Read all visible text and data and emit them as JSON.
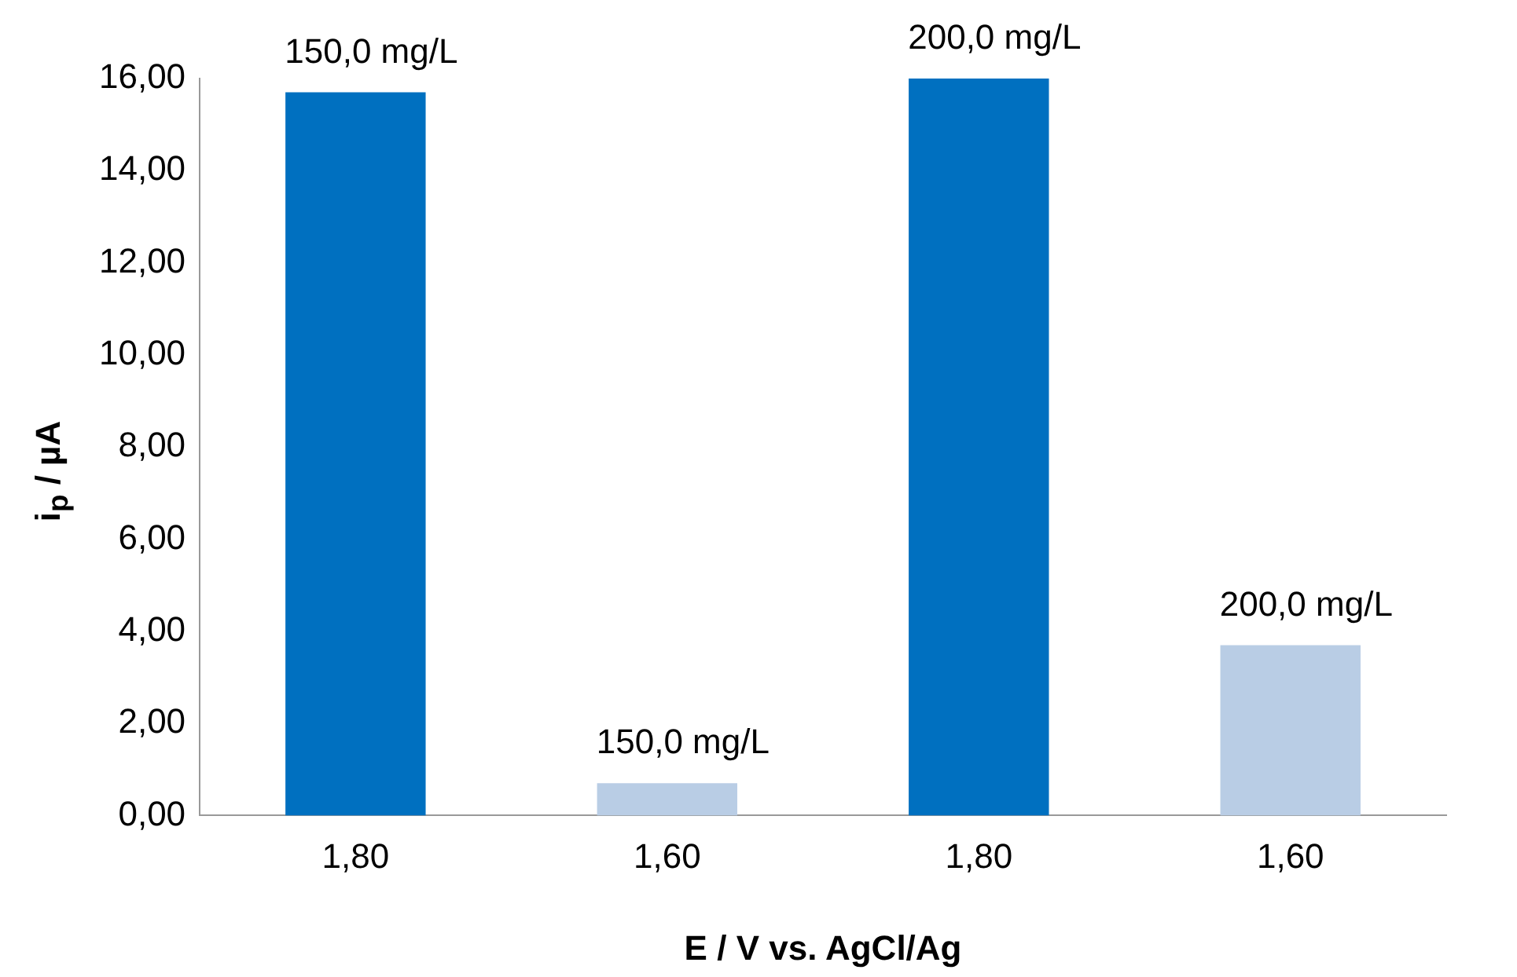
{
  "chart_data": {
    "type": "bar",
    "xlabel": "E / V vs. AgCl/Ag",
    "ylabel": "i$_{p}$ / µA",
    "categories": [
      "1,80",
      "1,60",
      "1,80",
      "1,60"
    ],
    "values": [
      15.7,
      0.7,
      16.0,
      3.7
    ],
    "colors": [
      "#0070c0",
      "#b9cde5",
      "#0070c0",
      "#b9cde5"
    ],
    "annotations": [
      "150,0 mg/L",
      "150,0 mg/L",
      "200,0 mg/L",
      "200,0 mg/L"
    ],
    "ylim": [
      0,
      16
    ],
    "yticks": [
      {
        "value": 0,
        "label": "0,00"
      },
      {
        "value": 2,
        "label": "2,00"
      },
      {
        "value": 4,
        "label": "4,00"
      },
      {
        "value": 6,
        "label": "6,00"
      },
      {
        "value": 8,
        "label": "8,00"
      },
      {
        "value": 10,
        "label": "10,00"
      },
      {
        "value": 12,
        "label": "12,00"
      },
      {
        "value": 14,
        "label": "14,00"
      },
      {
        "value": 16,
        "label": "16,00"
      }
    ],
    "grid": false,
    "legend": false
  }
}
